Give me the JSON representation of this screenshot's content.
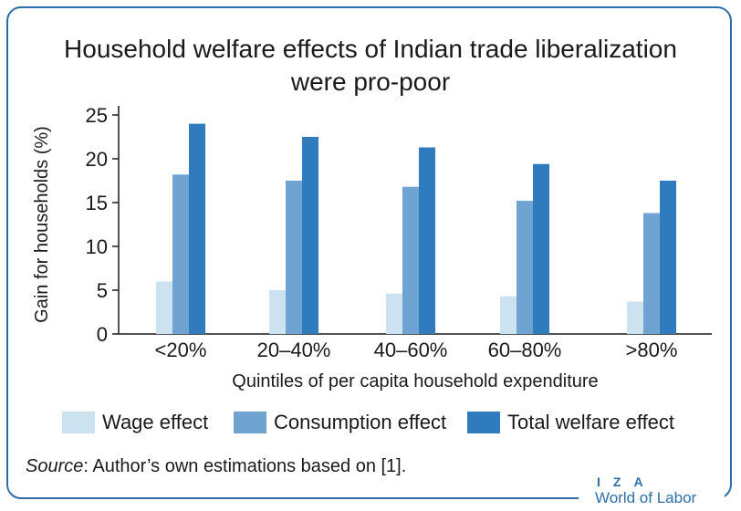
{
  "colors": {
    "frame": "#2e6ea8",
    "wage": "#cde2f0",
    "consumption": "#6ea3d2",
    "total": "#2f7bbd",
    "text": "#1a1a1a"
  },
  "chart_data": {
    "type": "bar",
    "title": "Household welfare effects of Indian trade liberalization were pro-poor",
    "title_lines": [
      "Household welfare effects of Indian trade liberalization",
      "were pro-poor"
    ],
    "xlabel": "Quintiles of per capita household expenditure",
    "ylabel": "Gain for households (%)",
    "ylim": [
      0,
      25
    ],
    "yticks": [
      0,
      5,
      10,
      15,
      20,
      25
    ],
    "categories": [
      "<20%",
      "20–40%",
      "40–60%",
      "60–80%",
      ">80%"
    ],
    "series": [
      {
        "name": "Wage effect",
        "color_key": "wage",
        "values": [
          6.0,
          5.0,
          4.6,
          4.3,
          3.7
        ]
      },
      {
        "name": "Consumption effect",
        "color_key": "consumption",
        "values": [
          18.2,
          17.5,
          16.8,
          15.2,
          13.8
        ]
      },
      {
        "name": "Total welfare effect",
        "color_key": "total",
        "values": [
          24.0,
          22.5,
          21.3,
          19.4,
          17.5
        ]
      }
    ],
    "legend_position": "bottom"
  },
  "source": {
    "label": "Source",
    "text": ": Author’s own estimations based on [1]."
  },
  "logo": {
    "top": "IZA",
    "bottom": "World of Labor"
  }
}
